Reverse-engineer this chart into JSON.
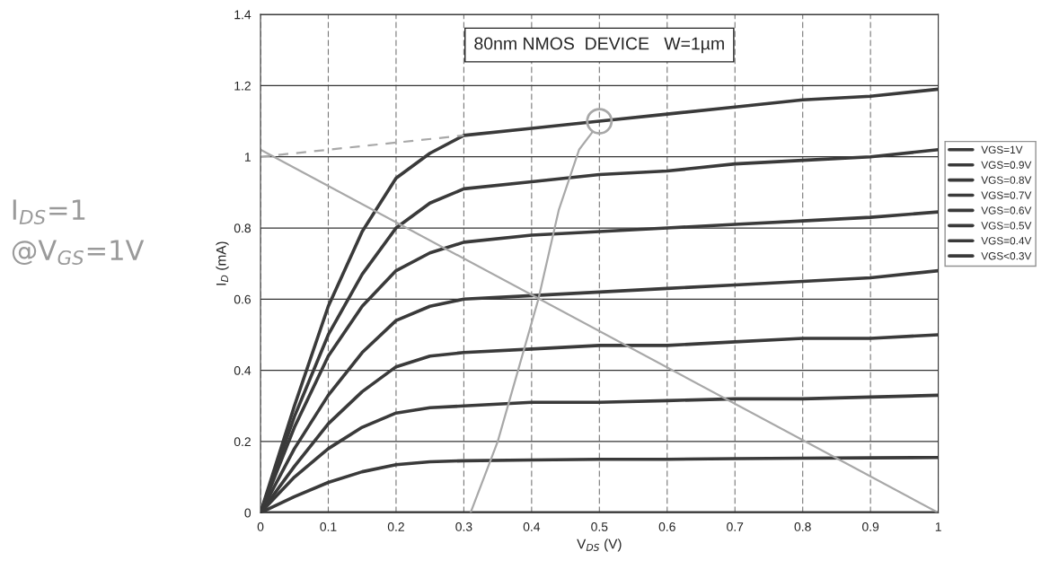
{
  "chart_data": {
    "type": "line",
    "title": "80nm NMOS  DEVICE   W=1µm",
    "xlabel": "V$_{DS}$ (V)",
    "ylabel": "I$_{D}$ (mA)",
    "x": [
      0,
      0.05,
      0.1,
      0.15,
      0.2,
      0.25,
      0.3,
      0.4,
      0.5,
      0.6,
      0.7,
      0.8,
      0.9,
      1.0
    ],
    "series": [
      {
        "name": "VGS=1V",
        "color": "#3a3a3a",
        "values": [
          0,
          0.3,
          0.58,
          0.79,
          0.94,
          1.01,
          1.06,
          1.08,
          1.1,
          1.12,
          1.14,
          1.16,
          1.17,
          1.19
        ]
      },
      {
        "name": "VGS=0.9V",
        "color": "#3a3a3a",
        "values": [
          0,
          0.27,
          0.5,
          0.67,
          0.8,
          0.87,
          0.91,
          0.93,
          0.95,
          0.96,
          0.98,
          0.99,
          1.0,
          1.02
        ]
      },
      {
        "name": "VGS=0.8V",
        "color": "#3a3a3a",
        "values": [
          0,
          0.24,
          0.44,
          0.58,
          0.68,
          0.73,
          0.76,
          0.78,
          0.79,
          0.8,
          0.81,
          0.82,
          0.83,
          0.845
        ]
      },
      {
        "name": "VGS=0.7V",
        "color": "#3a3a3a",
        "values": [
          0,
          0.18,
          0.33,
          0.45,
          0.54,
          0.58,
          0.6,
          0.61,
          0.62,
          0.63,
          0.64,
          0.65,
          0.66,
          0.68
        ]
      },
      {
        "name": "VGS=0.6V",
        "color": "#3a3a3a",
        "values": [
          0,
          0.13,
          0.25,
          0.34,
          0.41,
          0.44,
          0.45,
          0.46,
          0.47,
          0.47,
          0.48,
          0.49,
          0.49,
          0.5
        ]
      },
      {
        "name": "VGS=0.5V",
        "color": "#3a3a3a",
        "values": [
          0,
          0.1,
          0.18,
          0.24,
          0.28,
          0.295,
          0.3,
          0.31,
          0.31,
          0.315,
          0.32,
          0.32,
          0.325,
          0.33
        ]
      },
      {
        "name": "VGS=0.4V",
        "color": "#3a3a3a",
        "values": [
          0,
          0.045,
          0.085,
          0.115,
          0.135,
          0.143,
          0.146,
          0.148,
          0.15,
          0.15,
          0.152,
          0.153,
          0.154,
          0.155
        ]
      },
      {
        "name": "VGS<0.3V",
        "color": "#3a3a3a",
        "values": [
          0,
          0,
          0,
          0,
          0,
          0,
          0,
          0,
          0,
          0,
          0,
          0,
          0,
          0
        ]
      },
      {
        "color": "#a8a8a8",
        "x": [
          0,
          1.0
        ],
        "values": [
          1.02,
          0
        ]
      },
      {
        "color": "#a8a8a8",
        "line_style": "dashed",
        "x": [
          0,
          0.1,
          0.2,
          0.3
        ],
        "values": [
          1.0,
          1.02,
          1.04,
          1.06
        ]
      },
      {
        "color": "#a8a8a8",
        "x": [
          0.31,
          0.35,
          0.38,
          0.41,
          0.44,
          0.47,
          0.49
        ],
        "values": [
          0,
          0.2,
          0.4,
          0.6,
          0.85,
          1.02,
          1.07
        ]
      },
      {
        "type": "scatter",
        "color": "#a8a8a8",
        "marker": "circle",
        "x": [
          0.5
        ],
        "values": [
          1.1
        ]
      }
    ],
    "annotations": [
      "I$_{DS}$=1",
      "@V$_{GS}$=1V"
    ],
    "xlim": [
      0,
      1.0
    ],
    "ylim": [
      0,
      1.4
    ],
    "xticks": [
      0,
      0.1,
      0.2,
      0.3,
      0.4,
      0.5,
      0.6,
      0.7,
      0.8,
      0.9,
      1
    ],
    "yticks": [
      0,
      0.2,
      0.4,
      0.6,
      0.8,
      1,
      1.2,
      1.4
    ],
    "grid": true,
    "legend": "right",
    "line_style": "solid",
    "marker": "none"
  }
}
